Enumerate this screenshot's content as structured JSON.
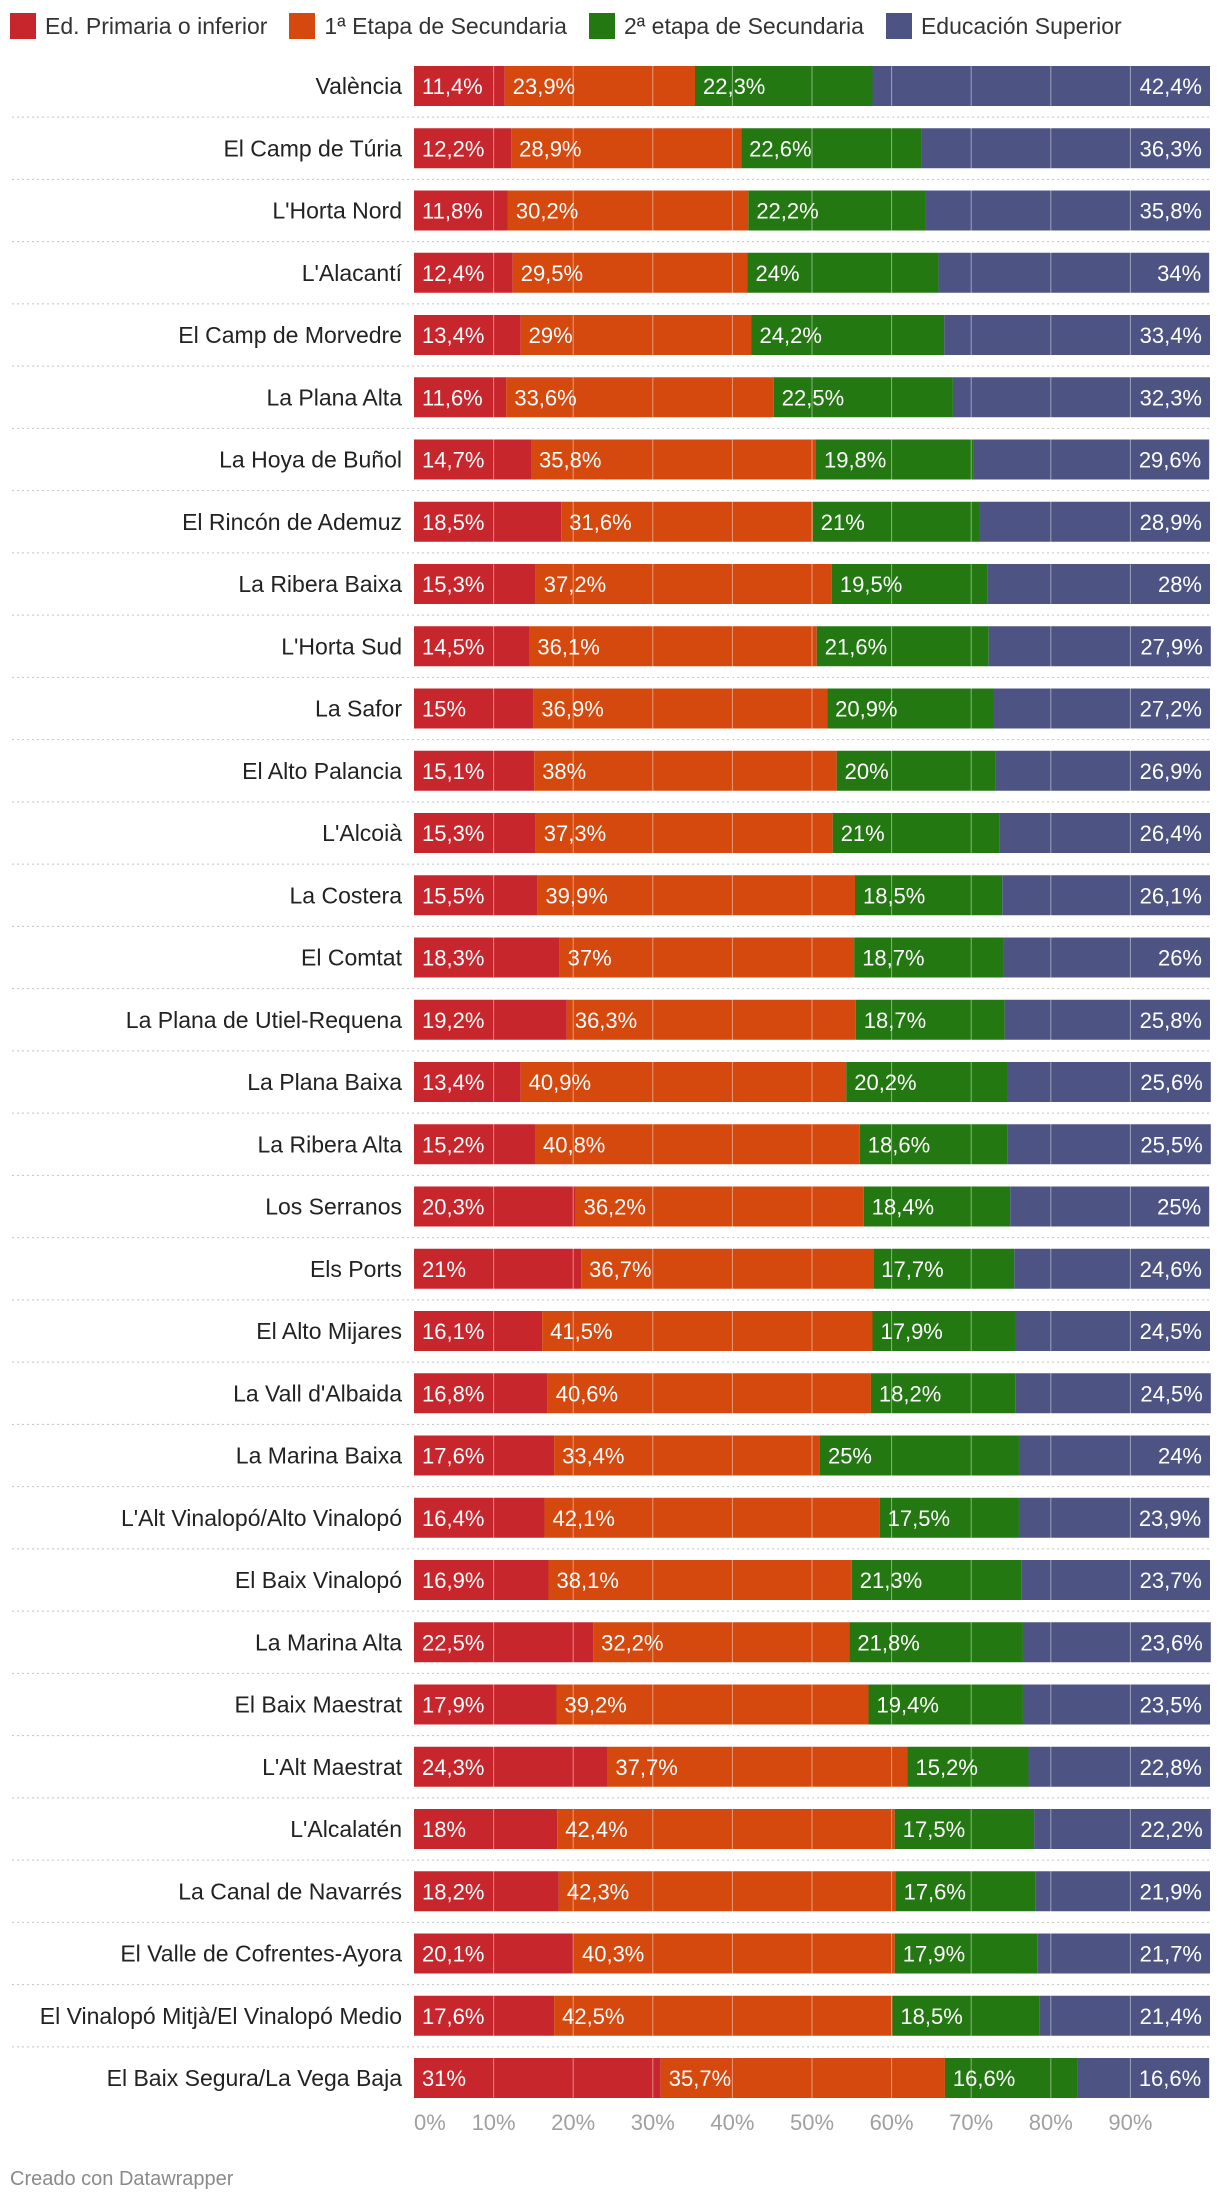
{
  "legend": [
    {
      "label": "Ed. Primaria o inferior",
      "color": "#c8262d"
    },
    {
      "label": "1ª Etapa de Secundaria",
      "color": "#d5490e"
    },
    {
      "label": "2ª etapa de Secundaria",
      "color": "#237812"
    },
    {
      "label": "Educación Superior",
      "color": "#4d5484"
    }
  ],
  "chart_data": {
    "type": "bar",
    "orientation": "horizontal",
    "stacked": true,
    "series": [
      {
        "name": "Ed. Primaria o inferior",
        "color": "#c8262d",
        "values": [
          11.4,
          12.2,
          11.8,
          12.4,
          13.4,
          11.6,
          14.7,
          18.5,
          15.3,
          14.5,
          15,
          15.1,
          15.3,
          15.5,
          18.3,
          19.2,
          13.4,
          15.2,
          20.3,
          21,
          16.1,
          16.8,
          17.6,
          16.4,
          16.9,
          22.5,
          17.9,
          24.3,
          18,
          18.2,
          20.1,
          17.6,
          31
        ],
        "labels": [
          "11,4%",
          "12,2%",
          "11,8%",
          "12,4%",
          "13,4%",
          "11,6%",
          "14,7%",
          "18,5%",
          "15,3%",
          "14,5%",
          "15%",
          "15,1%",
          "15,3%",
          "15,5%",
          "18,3%",
          "19,2%",
          "13,4%",
          "15,2%",
          "20,3%",
          "21%",
          "16,1%",
          "16,8%",
          "17,6%",
          "16,4%",
          "16,9%",
          "22,5%",
          "17,9%",
          "24,3%",
          "18%",
          "18,2%",
          "20,1%",
          "17,6%",
          "31%"
        ]
      },
      {
        "name": "1ª Etapa de Secundaria",
        "color": "#d5490e",
        "values": [
          23.9,
          28.9,
          30.2,
          29.5,
          29,
          33.6,
          35.8,
          31.6,
          37.2,
          36.1,
          36.9,
          38,
          37.3,
          39.9,
          37,
          36.3,
          40.9,
          40.8,
          36.2,
          36.7,
          41.5,
          40.6,
          33.4,
          42.1,
          38.1,
          32.2,
          39.2,
          37.7,
          42.4,
          42.3,
          40.3,
          42.5,
          35.7
        ],
        "labels": [
          "23,9%",
          "28,9%",
          "30,2%",
          "29,5%",
          "29%",
          "33,6%",
          "35,8%",
          "31,6%",
          "37,2%",
          "36,1%",
          "36,9%",
          "38%",
          "37,3%",
          "39,9%",
          "37%",
          "36,3%",
          "40,9%",
          "40,8%",
          "36,2%",
          "36,7%",
          "41,5%",
          "40,6%",
          "33,4%",
          "42,1%",
          "38,1%",
          "32,2%",
          "39,2%",
          "37,7%",
          "42,4%",
          "42,3%",
          "40,3%",
          "42,5%",
          "35,7%"
        ]
      },
      {
        "name": "2ª etapa de Secundaria",
        "color": "#237812",
        "values": [
          22.3,
          22.6,
          22.2,
          24,
          24.2,
          22.5,
          19.8,
          21,
          19.5,
          21.6,
          20.9,
          20,
          21,
          18.5,
          18.7,
          18.7,
          20.2,
          18.6,
          18.4,
          17.7,
          17.9,
          18.2,
          25,
          17.5,
          21.3,
          21.8,
          19.4,
          15.2,
          17.5,
          17.6,
          17.9,
          18.5,
          16.6
        ],
        "labels": [
          "22,3%",
          "22,6%",
          "22,2%",
          "24%",
          "24,2%",
          "22,5%",
          "19,8%",
          "21%",
          "19,5%",
          "21,6%",
          "20,9%",
          "20%",
          "21%",
          "18,5%",
          "18,7%",
          "18,7%",
          "20,2%",
          "18,6%",
          "18,4%",
          "17,7%",
          "17,9%",
          "18,2%",
          "25%",
          "17,5%",
          "21,3%",
          "21,8%",
          "19,4%",
          "15,2%",
          "17,5%",
          "17,6%",
          "17,9%",
          "18,5%",
          "16,6%"
        ]
      },
      {
        "name": "Educación Superior",
        "color": "#4d5484",
        "values": [
          42.4,
          36.3,
          35.8,
          34,
          33.4,
          32.3,
          29.6,
          28.9,
          28,
          27.9,
          27.2,
          26.9,
          26.4,
          26.1,
          26,
          25.8,
          25.6,
          25.5,
          25,
          24.6,
          24.5,
          24.5,
          24,
          23.9,
          23.7,
          23.6,
          23.5,
          22.8,
          22.2,
          21.9,
          21.7,
          21.4,
          16.6
        ],
        "labels": [
          "42,4%",
          "36,3%",
          "35,8%",
          "34%",
          "33,4%",
          "32,3%",
          "29,6%",
          "28,9%",
          "28%",
          "27,9%",
          "27,2%",
          "26,9%",
          "26,4%",
          "26,1%",
          "26%",
          "25,8%",
          "25,6%",
          "25,5%",
          "25%",
          "24,6%",
          "24,5%",
          "24,5%",
          "24%",
          "23,9%",
          "23,7%",
          "23,6%",
          "23,5%",
          "22,8%",
          "22,2%",
          "21,9%",
          "21,7%",
          "21,4%",
          "16,6%"
        ]
      }
    ],
    "categories": [
      "València",
      "El Camp de Túria",
      "L'Horta Nord",
      "L'Alacantí",
      "El Camp de Morvedre",
      "La Plana Alta",
      "La Hoya de Buñol",
      "El Rincón de Ademuz",
      "La Ribera Baixa",
      "L'Horta Sud",
      "La Safor",
      "El Alto Palancia",
      "L'Alcoià",
      "La Costera",
      "El Comtat",
      "La Plana de Utiel-Requena",
      "La Plana Baixa",
      "La Ribera Alta",
      "Los Serranos",
      "Els Ports",
      "El Alto Mijares",
      "La Vall d'Albaida",
      "La Marina Baixa",
      "L'Alt Vinalopó/Alto Vinalopó",
      "El Baix Vinalopó",
      "La Marina Alta",
      "El Baix Maestrat",
      "L'Alt Maestrat",
      "L'Alcalatén",
      "La Canal de Navarrés",
      "El Valle de Cofrentes-Ayora",
      "El Vinalopó Mitjà/El Vinalopó Medio",
      "El Baix Segura/La Vega Baja"
    ],
    "xlim": [
      0,
      100
    ],
    "ticks": [
      0,
      10,
      20,
      30,
      40,
      50,
      60,
      70,
      80,
      90
    ],
    "tick_labels": [
      "0%",
      "10%",
      "20%",
      "30%",
      "40%",
      "50%",
      "60%",
      "70%",
      "80%",
      "90%"
    ],
    "legend_position": "top-left"
  },
  "footer": {
    "credit": "Creado con Datawrapper"
  }
}
